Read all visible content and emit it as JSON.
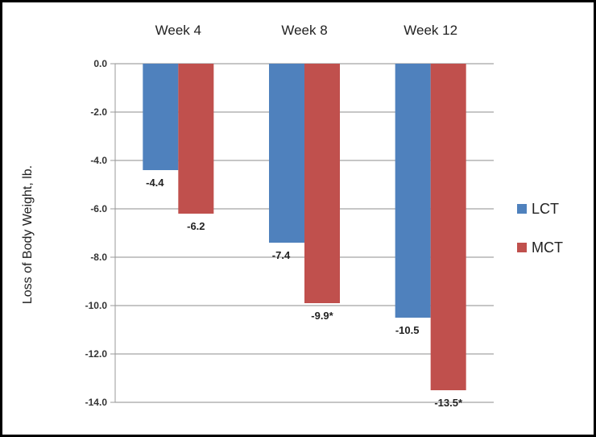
{
  "chart_data": {
    "type": "bar",
    "categories": [
      "Week 4",
      "Week 8",
      "Week 12"
    ],
    "series": [
      {
        "name": "LCT",
        "values": [
          -4.4,
          -7.4,
          -10.5
        ],
        "labels": [
          "-4.4",
          "-7.4",
          "-10.5"
        ],
        "color": "#4F81BD"
      },
      {
        "name": "MCT",
        "values": [
          -6.2,
          -9.9,
          -13.5
        ],
        "labels": [
          "-6.2",
          "-9.9*",
          "-13.5*"
        ],
        "color": "#C0504D"
      }
    ],
    "ylabel": "Loss of Body Weight, lb.",
    "ylim": [
      -14,
      0
    ],
    "yticks": [
      "0.0",
      "-2.0",
      "-4.0",
      "-6.0",
      "-8.0",
      "-10.0",
      "-12.0",
      "-14.0"
    ],
    "category_labels_position": "top",
    "grid": true,
    "legend": "right"
  }
}
